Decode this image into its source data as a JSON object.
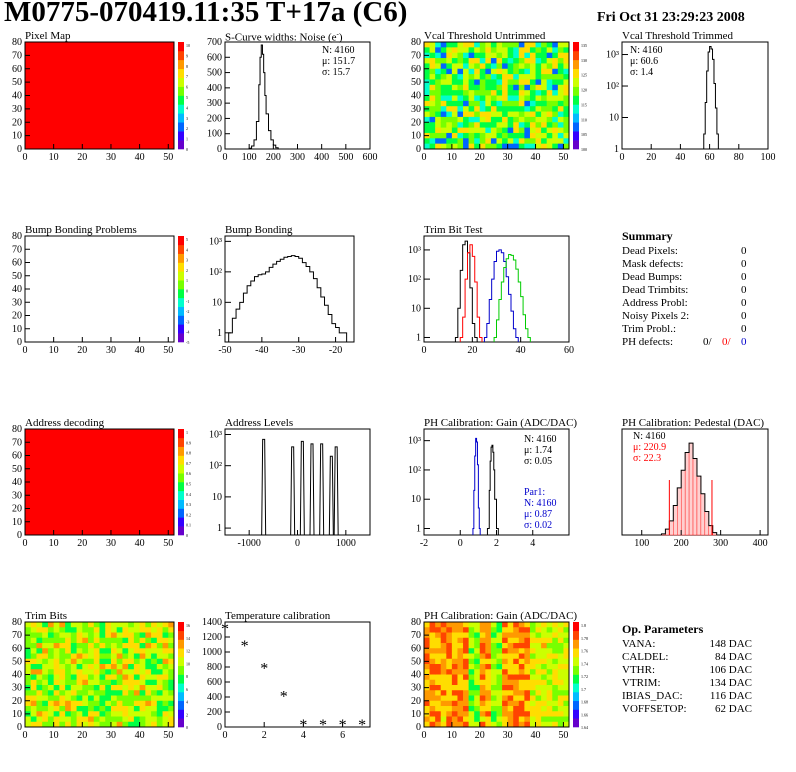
{
  "header": {
    "title": "M0775-070419.11:35 T+17a (C6)",
    "date": "Fri Oct 31 23:29:23 2008"
  },
  "colors": {
    "red": "#ff0000",
    "blue": "#0000cc",
    "green": "#00cc00",
    "black": "#000000"
  },
  "stats": {
    "scurve": [
      "N: 4160",
      "μ: 151.7",
      "σ: 15.7"
    ],
    "vcal_trimmed": [
      "N: 4160",
      "μ: 60.6",
      "σ:  1.4"
    ],
    "ph_gain": [
      "N: 4160",
      "μ: 1.74",
      "σ: 0.05"
    ],
    "ph_gain_fit": [
      "Par1:",
      "N: 4160",
      "μ: 0.87",
      "σ: 0.02"
    ],
    "ph_pedestal": [
      "N: 4160",
      "μ: 220.9",
      "σ: 22.3"
    ]
  },
  "summary": {
    "title": "Summary",
    "rows": [
      {
        "label": "Dead Pixels:",
        "value": "0"
      },
      {
        "label": "Mask defects:",
        "value": "0"
      },
      {
        "label": "Dead Bumps:",
        "value": "0"
      },
      {
        "label": "Dead Trimbits:",
        "value": "0"
      },
      {
        "label": "Address Probl:",
        "value": "0"
      },
      {
        "label": "Noisy Pixels 2:",
        "value": "0"
      },
      {
        "label": "Trim Probl.:",
        "value": "0"
      }
    ],
    "ph_label": "PH defects:",
    "ph_values": [
      "0/",
      "0/",
      "0"
    ]
  },
  "op_params": {
    "title": "Op. Parameters",
    "rows": [
      {
        "label": "VANA:",
        "value": "148 DAC"
      },
      {
        "label": "CALDEL:",
        "value": "84 DAC"
      },
      {
        "label": "VTHR:",
        "value": "106 DAC"
      },
      {
        "label": "VTRIM:",
        "value": "134 DAC"
      },
      {
        "label": "IBIAS_DAC:",
        "value": "116 DAC"
      },
      {
        "label": "VOFFSETOP:",
        "value": "62 DAC"
      }
    ]
  },
  "chart_data": [
    {
      "id": "pixel_map",
      "type": "heatmap",
      "title": "Pixel Map",
      "x_ticks": [
        0,
        10,
        20,
        30,
        40,
        50
      ],
      "y_ticks": [
        0,
        10,
        20,
        30,
        40,
        50,
        60,
        70,
        80
      ],
      "xlim": [
        0,
        52
      ],
      "ylim": [
        0,
        80
      ],
      "fill": "uniform red",
      "z_ticks": [
        "10",
        "9",
        "8",
        "7",
        "6",
        "5",
        "4",
        "3",
        "2",
        "1",
        "0"
      ]
    },
    {
      "id": "scurve",
      "type": "histogram",
      "title": "S-Curve widths: Noise (e⁻)",
      "xlim": [
        0,
        600
      ],
      "ylim": [
        0,
        700
      ],
      "x_ticks": [
        0,
        100,
        200,
        300,
        400,
        500,
        600
      ],
      "y_ticks": [
        0,
        100,
        200,
        300,
        400,
        500,
        600,
        700
      ],
      "x": [
        90,
        100,
        110,
        120,
        130,
        140,
        145,
        150,
        155,
        160,
        165,
        170,
        180,
        190,
        200,
        210,
        220
      ],
      "y": [
        0,
        5,
        20,
        60,
        180,
        420,
        600,
        680,
        620,
        500,
        350,
        230,
        120,
        60,
        25,
        8,
        0
      ]
    },
    {
      "id": "vcal_untrimmed",
      "type": "heatmap",
      "title": "Vcal Threshold Untrimmed",
      "x_ticks": [
        0,
        10,
        20,
        30,
        40,
        50
      ],
      "y_ticks": [
        0,
        10,
        20,
        30,
        40,
        50,
        60,
        70,
        80
      ],
      "xlim": [
        0,
        52
      ],
      "ylim": [
        0,
        80
      ],
      "z_ticks": [
        "135",
        "130",
        "125",
        "120",
        "115",
        "110",
        "105",
        "100"
      ]
    },
    {
      "id": "vcal_trimmed",
      "type": "histogram",
      "title": "Vcal Threshold Trimmed",
      "log_y": true,
      "xlim": [
        0,
        100
      ],
      "x_ticks": [
        0,
        20,
        40,
        60,
        80,
        100
      ],
      "y_ticks": [
        "1",
        "10",
        "10²",
        "10³"
      ],
      "x": [
        55,
        56,
        57,
        58,
        59,
        60,
        61,
        62,
        63,
        64,
        65,
        66,
        67
      ],
      "y": [
        1,
        3,
        30,
        300,
        1200,
        1800,
        1500,
        700,
        120,
        20,
        3,
        1,
        1
      ]
    },
    {
      "id": "bump_problems",
      "type": "heatmap",
      "title": "Bump Bonding Problems",
      "x_ticks": [
        0,
        10,
        20,
        30,
        40,
        50
      ],
      "y_ticks": [
        0,
        10,
        20,
        30,
        40,
        50,
        60,
        70,
        80
      ],
      "xlim": [
        0,
        52
      ],
      "ylim": [
        0,
        80
      ],
      "fill": "empty",
      "z_ticks": [
        "5",
        "4",
        "3",
        "2",
        "1",
        "0",
        "-1",
        "-2",
        "-3",
        "-4",
        "-5"
      ]
    },
    {
      "id": "bump_bonding",
      "type": "histogram",
      "title": "Bump Bonding",
      "log_y": true,
      "xlim": [
        -50,
        -15
      ],
      "x_ticks": [
        -50,
        -40,
        -30,
        -20
      ],
      "y_ticks": [
        "1",
        "10",
        "10²",
        "10³"
      ],
      "x": [
        -49,
        -48,
        -47,
        -46,
        -45,
        -44,
        -43,
        -42,
        -41,
        -40,
        -39,
        -38,
        -37,
        -36,
        -35,
        -34,
        -33,
        -32,
        -31,
        -30,
        -29,
        -28,
        -27,
        -26,
        -25,
        -24,
        -23,
        -22,
        -21,
        -20,
        -19,
        -18
      ],
      "y": [
        1,
        3,
        6,
        10,
        20,
        35,
        50,
        70,
        80,
        85,
        100,
        140,
        180,
        220,
        260,
        300,
        320,
        340,
        320,
        280,
        200,
        150,
        100,
        60,
        30,
        15,
        8,
        4,
        2,
        1.5,
        1,
        1
      ]
    },
    {
      "id": "trim_bit_test",
      "type": "histogram",
      "title": "Trim Bit Test",
      "log_y": true,
      "xlim": [
        0,
        60
      ],
      "x_ticks": [
        0,
        20,
        40,
        60
      ],
      "y_ticks": [
        "1",
        "10",
        "10²",
        "10³"
      ],
      "series": [
        {
          "name": "black",
          "x": [
            13,
            14,
            15,
            16,
            17,
            18,
            19,
            20,
            21
          ],
          "y": [
            1,
            10,
            200,
            1500,
            2000,
            800,
            50,
            3,
            1
          ]
        },
        {
          "name": "red",
          "x": [
            15,
            16,
            17,
            18,
            19,
            20,
            21,
            22,
            23
          ],
          "y": [
            1,
            5,
            100,
            800,
            1500,
            600,
            80,
            5,
            1
          ]
        },
        {
          "name": "blue",
          "x": [
            25,
            26,
            27,
            28,
            29,
            30,
            31,
            32,
            33,
            34,
            35,
            36,
            37,
            38
          ],
          "y": [
            1,
            3,
            20,
            100,
            400,
            900,
            1000,
            800,
            400,
            120,
            30,
            8,
            2,
            1
          ]
        },
        {
          "name": "green",
          "x": [
            29,
            30,
            31,
            32,
            33,
            34,
            35,
            36,
            37,
            38,
            39,
            40,
            41,
            42,
            43
          ],
          "y": [
            1,
            4,
            20,
            80,
            250,
            500,
            700,
            650,
            450,
            220,
            80,
            25,
            6,
            2,
            1
          ]
        }
      ]
    },
    {
      "id": "address_decoding",
      "type": "heatmap",
      "title": "Address decoding",
      "x_ticks": [
        0,
        10,
        20,
        30,
        40,
        50
      ],
      "y_ticks": [
        0,
        10,
        20,
        30,
        40,
        50,
        60,
        70,
        80
      ],
      "xlim": [
        0,
        52
      ],
      "ylim": [
        0,
        80
      ],
      "fill": "uniform red",
      "z_ticks": [
        "1",
        "0.9",
        "0.8",
        "0.7",
        "0.6",
        "0.5",
        "0.4",
        "0.3",
        "0.2",
        "0.1",
        "0"
      ]
    },
    {
      "id": "address_levels",
      "type": "histogram",
      "title": "Address Levels",
      "log_y": true,
      "xlim": [
        -1500,
        1500
      ],
      "x_ticks": [
        -1000,
        0,
        1000
      ],
      "y_ticks": [
        "1",
        "10",
        "10²",
        "10³"
      ],
      "peaks": [
        {
          "x": -700,
          "y": 700
        },
        {
          "x": -100,
          "y": 400
        },
        {
          "x": 100,
          "y": 600
        },
        {
          "x": 300,
          "y": 500
        },
        {
          "x": 500,
          "y": 500
        },
        {
          "x": 700,
          "y": 200
        },
        {
          "x": 800,
          "y": 400
        }
      ]
    },
    {
      "id": "ph_gain",
      "type": "histogram",
      "title": "PH Calibration: Gain (ADC/DAC)",
      "log_y": true,
      "xlim": [
        -2,
        6
      ],
      "x_ticks": [
        -2,
        0,
        2,
        4
      ],
      "y_ticks": [
        "1",
        "10",
        "10²",
        "10³"
      ],
      "series": [
        {
          "name": "black",
          "x": [
            1.5,
            1.6,
            1.65,
            1.7,
            1.75,
            1.8,
            1.85,
            1.9,
            2.0
          ],
          "y": [
            1,
            20,
            200,
            600,
            700,
            400,
            100,
            10,
            1
          ]
        },
        {
          "name": "blue",
          "x": [
            0.7,
            0.75,
            0.8,
            0.85,
            0.9,
            0.95,
            1.0,
            1.05
          ],
          "y": [
            1,
            20,
            300,
            1200,
            900,
            150,
            5,
            1
          ]
        }
      ]
    },
    {
      "id": "ph_pedestal",
      "type": "histogram",
      "title": "PH Calibration: Pedestal (DAC)",
      "xlim": [
        50,
        420
      ],
      "x_ticks": [
        100,
        200,
        300,
        400
      ],
      "y_ticks": [],
      "x": [
        155,
        165,
        175,
        185,
        195,
        205,
        215,
        225,
        235,
        245,
        255,
        265,
        275,
        285
      ],
      "y": [
        1,
        5,
        12,
        25,
        40,
        55,
        70,
        78,
        65,
        50,
        35,
        20,
        8,
        2
      ]
    },
    {
      "id": "trim_bits",
      "type": "heatmap",
      "title": "Trim Bits",
      "x_ticks": [
        0,
        10,
        20,
        30,
        40,
        50
      ],
      "y_ticks": [
        0,
        10,
        20,
        30,
        40,
        50,
        60,
        70,
        80
      ],
      "xlim": [
        0,
        52
      ],
      "ylim": [
        0,
        80
      ],
      "z_ticks": [
        "16",
        "14",
        "12",
        "10",
        "8",
        "6",
        "4",
        "2",
        "0"
      ]
    },
    {
      "id": "temperature",
      "type": "scatter",
      "title": "Temperature calibration",
      "xlim": [
        0,
        7.4
      ],
      "ylim": [
        0,
        1400
      ],
      "x_ticks": [
        0,
        2,
        4,
        6
      ],
      "y_ticks": [
        0,
        200,
        400,
        600,
        800,
        1000,
        1200,
        1400
      ],
      "x": [
        0,
        1,
        2,
        3,
        4,
        5,
        6,
        7
      ],
      "y": [
        1310,
        1080,
        780,
        410,
        30,
        30,
        30,
        30
      ]
    },
    {
      "id": "ph_gain_map",
      "type": "heatmap",
      "title": "PH Calibration: Gain (ADC/DAC)",
      "x_ticks": [
        0,
        10,
        20,
        30,
        40,
        50
      ],
      "y_ticks": [
        0,
        10,
        20,
        30,
        40,
        50,
        60,
        70,
        80
      ],
      "xlim": [
        0,
        52
      ],
      "ylim": [
        0,
        80
      ],
      "z_ticks": [
        "1.8",
        "1.78",
        "1.76",
        "1.74",
        "1.72",
        "1.7",
        "1.68",
        "1.66",
        "1.64"
      ]
    }
  ]
}
